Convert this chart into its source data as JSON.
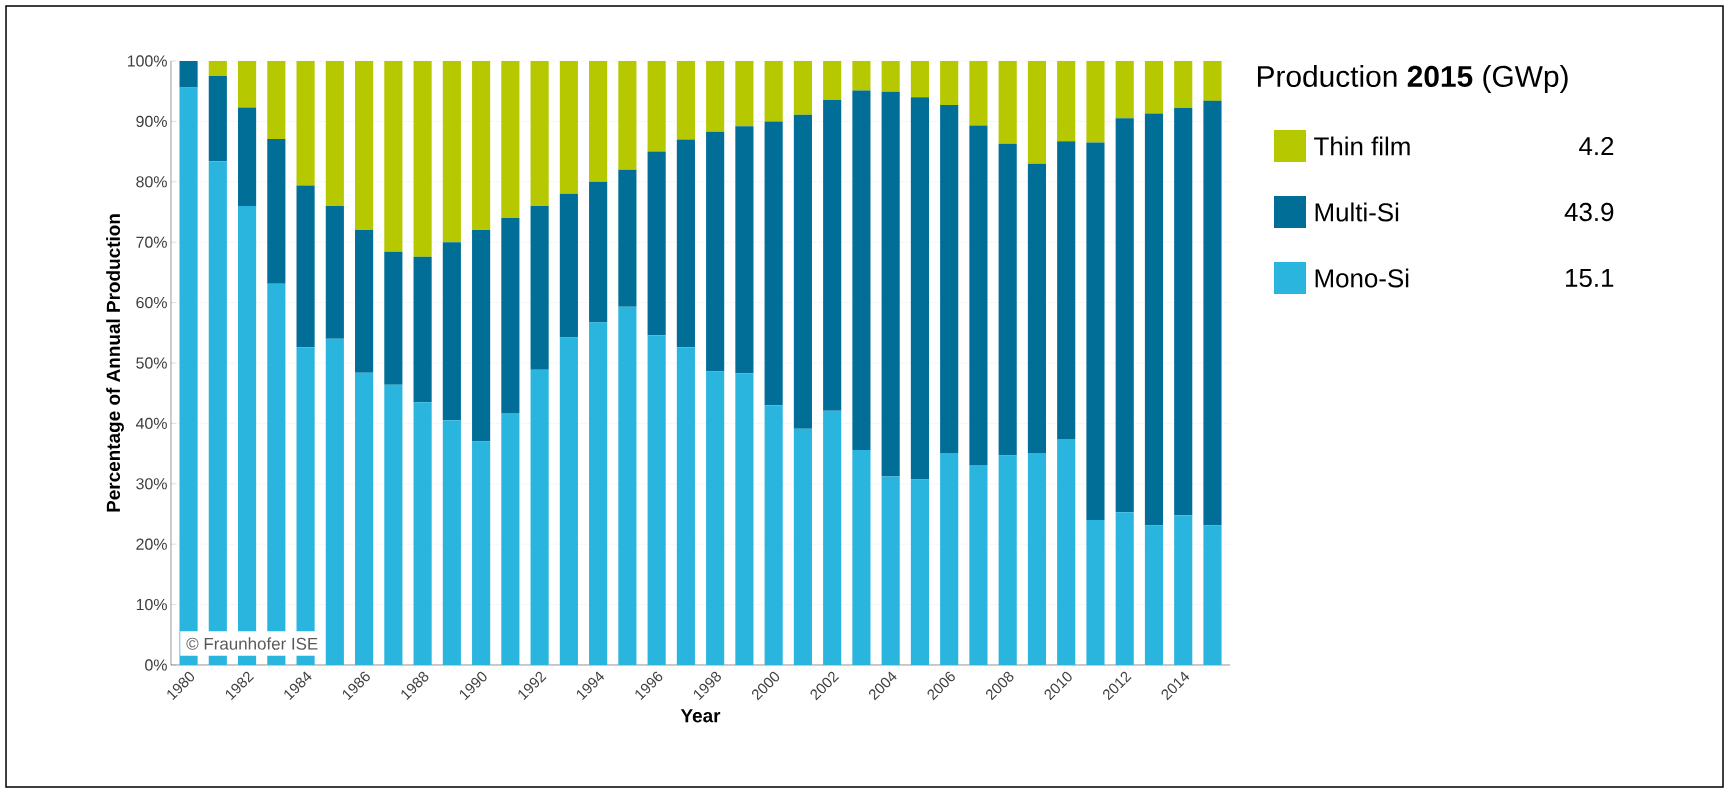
{
  "chart_data": {
    "type": "bar",
    "stacked": true,
    "xlabel": "Year",
    "ylabel": "Percentage of Annual Production",
    "legend_title": "Production **2015** (GWp)",
    "legend": "right",
    "grid": "y",
    "categories": [
      "1980",
      null,
      "1982",
      null,
      "1984",
      null,
      "1986",
      null,
      "1988",
      null,
      "1990",
      null,
      "1992",
      null,
      "1994",
      null,
      "1996",
      null,
      "1998",
      null,
      "2000",
      null,
      "2002",
      null,
      "2004",
      null,
      "2006",
      null,
      "2008",
      null,
      "2010",
      null,
      "2012",
      null,
      "2014",
      null
    ],
    "ylim": [
      0,
      100
    ],
    "yticks": [
      {
        "value": 0,
        "label": "0%"
      },
      {
        "value": 10,
        "label": "10%"
      },
      {
        "value": 20,
        "label": "20%"
      },
      {
        "value": 30,
        "label": "30%"
      },
      {
        "value": 40,
        "label": "40%"
      },
      {
        "value": 50,
        "label": "50%"
      },
      {
        "value": 60,
        "label": "60%"
      },
      {
        "value": 70,
        "label": "70%"
      },
      {
        "value": 80,
        "label": "80%"
      },
      {
        "value": 90,
        "label": "90%"
      },
      {
        "value": 100,
        "label": "100%"
      }
    ],
    "series": [
      {
        "name": "Mono-Si",
        "color": "#29b5de",
        "values": [
          95.6,
          83.4,
          76.0,
          63.1,
          52.6,
          54.0,
          48.4,
          46.4,
          43.5,
          40.5,
          37.0,
          41.7,
          48.9,
          54.2,
          56.7,
          59.3,
          54.6,
          52.6,
          48.6,
          48.3,
          43.0,
          39.1,
          42.1,
          35.6,
          31.2,
          30.7,
          35.1,
          33.1,
          34.7,
          35.1,
          37.4,
          24.0,
          25.3,
          23.1,
          24.8,
          23.1
        ]
      },
      {
        "name": "Multi-Si",
        "color": "#006e96",
        "values": [
          4.4,
          14.1,
          16.3,
          24.0,
          26.8,
          22.0,
          23.6,
          22.0,
          24.1,
          29.5,
          35.0,
          32.3,
          27.1,
          23.8,
          23.3,
          22.7,
          30.4,
          34.4,
          39.7,
          40.9,
          47.0,
          52.0,
          51.5,
          59.5,
          63.7,
          63.3,
          57.6,
          56.2,
          51.6,
          47.9,
          49.3,
          62.5,
          65.2,
          68.2,
          67.4,
          70.3
        ]
      },
      {
        "name": "Thin film",
        "color": "#b5c800",
        "values": [
          0,
          2.5,
          7.7,
          12.9,
          20.6,
          24.0,
          28.0,
          31.6,
          32.4,
          30.0,
          28.0,
          26.0,
          24.0,
          22.0,
          20.0,
          18.0,
          15.0,
          13.0,
          11.7,
          10.8,
          10.0,
          8.9,
          6.4,
          4.9,
          5.1,
          6.0,
          7.3,
          10.7,
          13.7,
          17.0,
          13.3,
          13.5,
          9.5,
          8.7,
          7.8,
          6.6
        ]
      }
    ],
    "annotations": [
      "15.1",
      "43.9",
      "4.2",
      "© Fraunhofer ISE"
    ]
  }
}
